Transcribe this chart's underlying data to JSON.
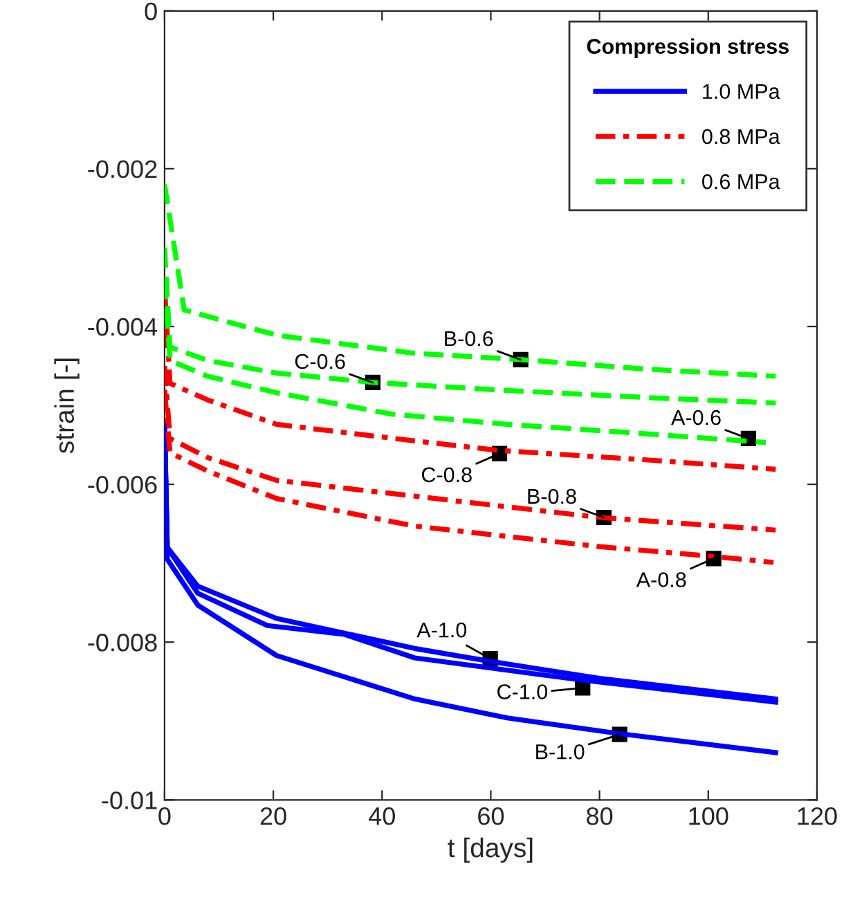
{
  "chart_data": {
    "type": "line",
    "xlabel": "t [days]",
    "ylabel": "strain [-]",
    "legend_title": "Compression stress",
    "legend": "top right",
    "grid": false,
    "marker": "none",
    "xlim": [
      0,
      120
    ],
    "xticks": [
      0,
      20,
      40,
      60,
      80,
      100,
      120
    ],
    "ylim": [
      -0.01,
      0
    ],
    "yticks": [
      {
        "value": -0.01,
        "label": "-0.01"
      },
      {
        "value": -0.008,
        "label": "-0.008"
      },
      {
        "value": -0.006,
        "label": "-0.006"
      },
      {
        "value": -0.004,
        "label": "-0.004"
      },
      {
        "value": -0.002,
        "label": "-0.002"
      },
      {
        "value": 0,
        "label": "0"
      }
    ],
    "series": [
      {
        "name": "1.0 MPa",
        "color": "#0000ff",
        "line_style": "solid",
        "x": [
          0,
          0.5,
          6.1,
          20.6,
          46,
          59.6,
          80,
          112.4
        ],
        "values": [
          -0.0052,
          -0.0068,
          -0.00729,
          -0.0077,
          -0.00808,
          -0.00824,
          -0.00846,
          -0.00872
        ]
      },
      {
        "name": "0.8 MPa",
        "color": "#ff0000",
        "line_style": "dashdot",
        "x": [
          0,
          1,
          7.9,
          20.6,
          46,
          61.4,
          88.6,
          112.4
        ],
        "values": [
          -0.0035,
          -0.00472,
          -0.00493,
          -0.00524,
          -0.00545,
          -0.00557,
          -0.00569,
          -0.00581
        ]
      },
      {
        "name": "0.6 MPa",
        "color": "#00ff00",
        "line_style": "dashed",
        "x": [
          0,
          3.6,
          20.6,
          46,
          65.7,
          88.6,
          112.4
        ],
        "values": [
          -0.0022,
          -0.00379,
          -0.00411,
          -0.00434,
          -0.00442,
          -0.00454,
          -0.00463
        ]
      },
      {
        "color": "#0000ff",
        "line_style": "solid",
        "x": [
          0,
          0.5,
          6.1,
          18.9,
          33,
          46,
          76.7,
          112.4
        ],
        "values": [
          -0.0052,
          -0.0068,
          -0.00738,
          -0.00779,
          -0.0079,
          -0.0082,
          -0.00848,
          -0.00876
        ]
      },
      {
        "color": "#0000ff",
        "line_style": "solid",
        "x": [
          0,
          0.5,
          6.1,
          20.6,
          46,
          63,
          83.6,
          112.4
        ],
        "values": [
          -0.0052,
          -0.00695,
          -0.00753,
          -0.00817,
          -0.00872,
          -0.00896,
          -0.00916,
          -0.0094
        ]
      },
      {
        "color": "#ff0000",
        "line_style": "dashdot",
        "x": [
          0,
          1,
          7.9,
          20.6,
          46,
          80,
          112.4
        ],
        "values": [
          -0.0045,
          -0.00542,
          -0.00566,
          -0.00595,
          -0.00615,
          -0.00642,
          -0.00658
        ]
      },
      {
        "color": "#ff0000",
        "line_style": "dashdot",
        "x": [
          0,
          1,
          7.9,
          20.6,
          46,
          80,
          100.4,
          112
        ],
        "values": [
          -0.0048,
          -0.0056,
          -0.00583,
          -0.00618,
          -0.00653,
          -0.00679,
          -0.00691,
          -0.00699
        ]
      },
      {
        "color": "#00ff00",
        "line_style": "dashed",
        "x": [
          0,
          1,
          7.9,
          20.6,
          38.5,
          63,
          88.6,
          112.4
        ],
        "values": [
          -0.003,
          -0.00426,
          -0.00443,
          -0.00459,
          -0.00471,
          -0.00481,
          -0.0049,
          -0.00497
        ]
      },
      {
        "color": "#00ff00",
        "line_style": "dashed",
        "x": [
          0,
          1,
          7.9,
          20.6,
          41.8,
          63,
          88.6,
          110.6
        ],
        "values": [
          -0.0034,
          -0.00443,
          -0.00463,
          -0.00484,
          -0.00511,
          -0.00524,
          -0.00536,
          -0.00547
        ]
      }
    ],
    "annotations": [
      {
        "text": "B-0.6",
        "x": 65.5,
        "y": -0.00442
      },
      {
        "text": "C-0.6",
        "x": 38.3,
        "y": -0.00471
      },
      {
        "text": "A-0.6",
        "x": 107.4,
        "y": -0.00542
      },
      {
        "text": "C-0.8",
        "x": 61.6,
        "y": -0.00561
      },
      {
        "text": "B-0.8",
        "x": 80.8,
        "y": -0.00642
      },
      {
        "text": "A-0.8",
        "x": 101,
        "y": -0.00694
      },
      {
        "text": "A-1.0",
        "x": 59.9,
        "y": -0.00821
      },
      {
        "text": "C-1.0",
        "x": 76.9,
        "y": -0.00858
      },
      {
        "text": "B-1.0",
        "x": 83.7,
        "y": -0.00917
      }
    ]
  }
}
